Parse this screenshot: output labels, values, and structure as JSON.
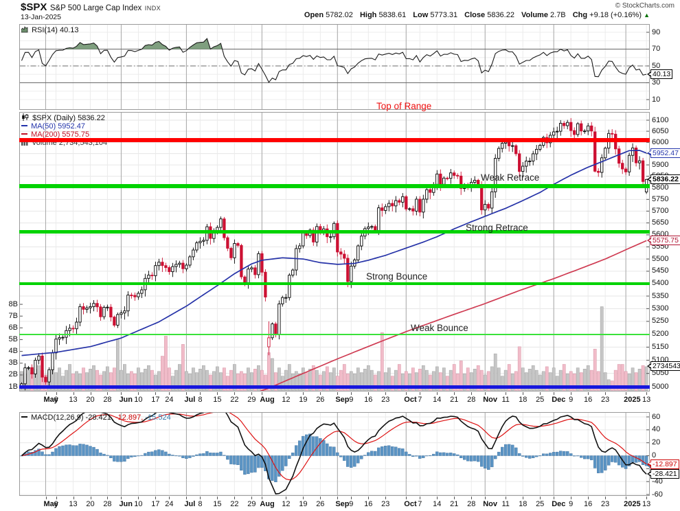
{
  "header": {
    "symbol": "$SPX",
    "title": "S&P 500 Large Cap Index",
    "exchange": "INDX",
    "date": "13-Jan-2025",
    "copyright": "© StockCharts.com",
    "quote": {
      "open_label": "Open",
      "open": "5782.02",
      "high_label": "High",
      "high": "5838.61",
      "low_label": "Low",
      "low": "5773.31",
      "close_label": "Close",
      "close": "5836.22",
      "volume_label": "Volume",
      "volume": "2.7B",
      "chg_label": "Chg",
      "chg": "+9.18 (+0.16%)",
      "chg_arrow": "▲"
    }
  },
  "legend": {
    "rsi": "RSI(14) 40.13",
    "spx": "$SPX (Daily) 5836.22",
    "ma50": "MA(50) 5952.47",
    "ma200": "MA(200) 5575.75",
    "volume": "Volume 2,734,543,104",
    "macd_black": "MACD(12,26,9) -28.421,",
    "macd_red": " -12.897,",
    "macd_blue": " -15.524"
  },
  "chart_data": {
    "type": "candlestick+indicators",
    "symbol": "$SPX",
    "timeframe": "Daily, late Apr 2024 – 13 Jan 2025",
    "scale": "log",
    "price_range": [
      4980,
      6140
    ],
    "closes": [
      5011,
      5071,
      5072,
      5048,
      5100,
      5116,
      5036,
      5018,
      5064,
      5128,
      5181,
      5187,
      5188,
      5214,
      5223,
      5221,
      5247,
      5308,
      5297,
      5303,
      5308,
      5321,
      5307,
      5268,
      5305,
      5306,
      5267,
      5235,
      5277,
      5283,
      5291,
      5354,
      5353,
      5347,
      5361,
      5375,
      5421,
      5434,
      5432,
      5473,
      5487,
      5473,
      5465,
      5448,
      5469,
      5478,
      5483,
      5460,
      5475,
      5509,
      5537,
      5567,
      5573,
      5577,
      5634,
      5585,
      5615,
      5631,
      5667,
      5588,
      5544,
      5505,
      5564,
      5556,
      5427,
      5399,
      5459,
      5464,
      5436,
      5522,
      5446,
      5346,
      5186,
      5240,
      5199,
      5319,
      5344,
      5344,
      5434,
      5455,
      5543,
      5554,
      5608,
      5597,
      5620,
      5570,
      5635,
      5616,
      5625,
      5592,
      5592,
      5648,
      5529,
      5520,
      5503,
      5408,
      5471,
      5496,
      5554,
      5595,
      5626,
      5633,
      5635,
      5618,
      5714,
      5703,
      5719,
      5733,
      5722,
      5745,
      5738,
      5762,
      5709,
      5710,
      5700,
      5751,
      5696,
      5751,
      5792,
      5780,
      5815,
      5860,
      5815,
      5842,
      5841,
      5865,
      5854,
      5851,
      5797,
      5810,
      5808,
      5824,
      5833,
      5814,
      5705,
      5729,
      5713,
      5783,
      5929,
      5973,
      5996,
      6001,
      5984,
      5985,
      5949,
      5871,
      5894,
      5917,
      5917,
      5949,
      5969,
      5987,
      6022,
      5998,
      6032,
      6047,
      6050,
      6086,
      6075,
      6090,
      6053,
      6035,
      6084,
      6051,
      6051,
      6074,
      6051,
      5872,
      5867,
      5931,
      5974,
      6040,
      6037,
      5971,
      5907,
      5882,
      5869,
      5942,
      5975,
      5909,
      5918,
      5827,
      5836.22
    ],
    "ohlc_overrides": {
      "72": [
        5151,
        5250,
        5119,
        5186
      ],
      "167": [
        6047,
        6070,
        5867,
        5872
      ],
      "182": [
        5782.02,
        5838.61,
        5773.31,
        5836.22
      ]
    },
    "volume_pattern": [
      2.3,
      2.1,
      2.6,
      2.2,
      2.5,
      2.8,
      2.4,
      2.0,
      2.3,
      2.7,
      2.2,
      2.6,
      1.9,
      2.4,
      2.9,
      2.1
    ],
    "volume_spikes": {
      "28": 5.0,
      "41": 3.6,
      "42": 5.3,
      "47": 4.6,
      "72": 3.9,
      "73": 3.4,
      "105": 5.6,
      "128": 3.2,
      "138": 3.8,
      "145": 4.4,
      "167": 4.2,
      "169": 7.8,
      "171": 1.6,
      "172": 1.5,
      "175": 2.9,
      "182": 2.7
    },
    "ma50_keyframes": [
      [
        0,
        5118
      ],
      [
        10,
        5130
      ],
      [
        20,
        5152
      ],
      [
        29,
        5185
      ],
      [
        40,
        5248
      ],
      [
        48,
        5310
      ],
      [
        57,
        5392
      ],
      [
        62,
        5440
      ],
      [
        67,
        5480
      ],
      [
        70,
        5495
      ],
      [
        76,
        5505
      ],
      [
        82,
        5500
      ],
      [
        87,
        5485
      ],
      [
        92,
        5478
      ],
      [
        97,
        5482
      ],
      [
        101,
        5495
      ],
      [
        106,
        5515
      ],
      [
        112,
        5545
      ],
      [
        117,
        5570
      ],
      [
        121,
        5592
      ],
      [
        126,
        5625
      ],
      [
        131,
        5655
      ],
      [
        135,
        5678
      ],
      [
        141,
        5712
      ],
      [
        146,
        5745
      ],
      [
        151,
        5780
      ],
      [
        155,
        5815
      ],
      [
        160,
        5855
      ],
      [
        165,
        5890
      ],
      [
        170,
        5920
      ],
      [
        174,
        5945
      ],
      [
        177,
        5963
      ],
      [
        180,
        5964
      ],
      [
        182,
        5952.47
      ]
    ],
    "ma200_keyframes": [
      [
        0,
        4830
      ],
      [
        40,
        4900
      ],
      [
        55,
        4940
      ],
      [
        65,
        4962
      ],
      [
        72,
        4995
      ],
      [
        82,
        5050
      ],
      [
        92,
        5105
      ],
      [
        102,
        5158
      ],
      [
        112,
        5210
      ],
      [
        124,
        5268
      ],
      [
        135,
        5320
      ],
      [
        145,
        5372
      ],
      [
        155,
        5420
      ],
      [
        163,
        5462
      ],
      [
        170,
        5500
      ],
      [
        176,
        5538
      ],
      [
        182,
        5575.75
      ]
    ],
    "rsi_seed": {
      "avg_gain": 9,
      "avg_loss": 7
    },
    "rsi_last": 40.13,
    "macd_last": {
      "macd": -28.421,
      "signal": -12.897,
      "hist": -15.524
    },
    "ma50_last": 5952.47,
    "ma200_last": 5575.75,
    "close_last": 5836.22,
    "volume_last_label": "2734543",
    "x_labels": [
      [
        "May",
        7,
        1
      ],
      [
        "6",
        10,
        0
      ],
      [
        "13",
        15,
        0
      ],
      [
        "20",
        20,
        0
      ],
      [
        "28",
        25,
        0
      ],
      [
        "Jun",
        29,
        1
      ],
      [
        "10",
        34,
        0
      ],
      [
        "17",
        39,
        0
      ],
      [
        "24",
        43,
        0
      ],
      [
        "Jul",
        48,
        1
      ],
      [
        "8",
        52,
        0
      ],
      [
        "15",
        57,
        0
      ],
      [
        "22",
        62,
        0
      ],
      [
        "29",
        67,
        0
      ],
      [
        "Aug",
        70,
        1
      ],
      [
        "12",
        77,
        0
      ],
      [
        "19",
        82,
        0
      ],
      [
        "26",
        87,
        0
      ],
      [
        "Sep",
        92,
        1
      ],
      [
        "9",
        96,
        0
      ],
      [
        "16",
        101,
        0
      ],
      [
        "23",
        106,
        0
      ],
      [
        "Oct",
        112,
        1
      ],
      [
        "7",
        116,
        0
      ],
      [
        "14",
        121,
        0
      ],
      [
        "21",
        126,
        0
      ],
      [
        "28",
        131,
        0
      ],
      [
        "Nov",
        135,
        1
      ],
      [
        "11",
        141,
        0
      ],
      [
        "18",
        146,
        0
      ],
      [
        "25",
        151,
        0
      ],
      [
        "Dec",
        155,
        1
      ],
      [
        "9",
        160,
        0
      ],
      [
        "16",
        165,
        0
      ],
      [
        "23",
        170,
        0
      ],
      [
        "2025",
        176,
        1
      ],
      [
        "13",
        182,
        0
      ]
    ],
    "month_start_indices": [
      7,
      29,
      48,
      70,
      92,
      112,
      135,
      155,
      176
    ],
    "axes": {
      "price_ticks": [
        6100,
        6050,
        6000,
        5950,
        5900,
        5850,
        5800,
        5750,
        5700,
        5650,
        5600,
        5550,
        5500,
        5450,
        5400,
        5350,
        5300,
        5250,
        5200,
        5150,
        5100,
        5050,
        5000
      ],
      "rsi_ticks": [
        90,
        70,
        50,
        30,
        10
      ],
      "rsi_lines": {
        "overbought": 70,
        "midline": 50,
        "oversold": 30
      },
      "macd_ticks": [
        60,
        40,
        20,
        0,
        -20,
        -40,
        -60
      ],
      "volume_ticks": [
        "8B",
        "7B",
        "6B",
        "5B",
        "4B",
        "3B",
        "2B",
        "1B"
      ]
    },
    "hlines": [
      {
        "name": "top-of-range-line",
        "price": 6010,
        "color": "#ff0000",
        "w": 6
      },
      {
        "name": "weak-retrace-line",
        "price": 5806,
        "color": "#00d300",
        "w": 6
      },
      {
        "name": "strong-retrace-line",
        "price": 5612,
        "color": "#00d300",
        "w": 5
      },
      {
        "name": "strong-bounce-line",
        "price": 5400,
        "color": "#00d300",
        "w": 4
      },
      {
        "name": "weak-bounce-line",
        "price": 5200,
        "color": "#3ae23a",
        "w": 2
      },
      {
        "name": "support-5000-line",
        "price": 5000,
        "color": "#1717dd",
        "w": 5
      }
    ],
    "annotations": {
      "top_of_range": "Top of Range",
      "weak_retrace": "Weak Retrace",
      "strong_retrace": "Strong Retrace",
      "strong_bounce": "Strong Bounce",
      "weak_bounce": "Weak Bounce"
    },
    "callouts": [
      {
        "text": "40.13",
        "type": "rsi",
        "v": 40.13,
        "c": "#000000",
        "tc": "#000000",
        "bold": false
      },
      {
        "text": "5952.47",
        "type": "price",
        "v": 5952.47,
        "c": "#2233aa",
        "tc": "#2233aa",
        "bold": false
      },
      {
        "text": "5836.22",
        "type": "price",
        "v": 5836.22,
        "c": "#000000",
        "tc": "#000000",
        "bold": true
      },
      {
        "text": "5575.75",
        "type": "price",
        "v": 5575.75,
        "c": "#b01030",
        "tc": "#b01030",
        "bold": false
      },
      {
        "text": "2734543",
        "type": "volume",
        "v": 2.73,
        "c": "#000000",
        "tc": "#000000",
        "bold": false
      },
      {
        "text": "-15.524",
        "type": "macd",
        "v": -15.524,
        "c": "#336699",
        "tc": "#336699",
        "bold": false
      },
      {
        "text": "-12.897",
        "type": "macd",
        "v": -12.897,
        "c": "#cc0000",
        "tc": "#cc0000",
        "bold": false
      },
      {
        "text": "-28.421",
        "type": "macd",
        "v": -28.421,
        "c": "#000000",
        "tc": "#000000",
        "bold": false
      }
    ],
    "colors": {
      "candle_up_outline": "#000000",
      "candle_down_outline": "#cc1133",
      "volume_up": "#c6c6c6",
      "volume_down": "#f1bcc9",
      "ma50": "#2633a8",
      "ma200": "#cf3b52",
      "rsi_fill": "#7f9f7f",
      "macd_hist": "#5b94c4",
      "macd_line": "#111111",
      "signal_line": "#dd1111",
      "grid_week": "#ebebeb",
      "grid_month": "#a8a8a8",
      "grid_h": "#e6e6e6"
    }
  }
}
